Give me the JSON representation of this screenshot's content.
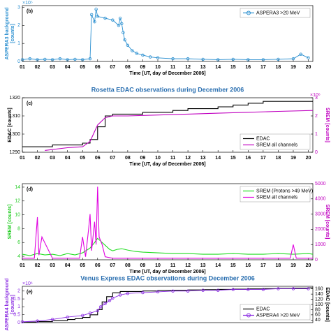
{
  "chart_data": [
    {
      "type": "line",
      "panel_label": "(b)",
      "ylabel": "ASPERA3 background\n[counts]",
      "ylabel_color": "#2a8fd0",
      "y_multiplier": "×10⁵",
      "xlabel": "Time [UT, day of December 2006]",
      "legend": "upper right",
      "xlim": [
        1,
        20.3
      ],
      "ylim": [
        0,
        3.1
      ],
      "yticks": [
        0,
        1,
        2,
        3
      ],
      "xticks": [
        {
          "value": 1,
          "label": "01"
        },
        {
          "value": 2,
          "label": "02"
        },
        {
          "value": 3,
          "label": "03"
        },
        {
          "value": 4,
          "label": "04"
        },
        {
          "value": 5,
          "label": "05"
        },
        {
          "value": 6,
          "label": "06"
        },
        {
          "value": 7,
          "label": "07"
        },
        {
          "value": 8,
          "label": "08"
        },
        {
          "value": 9,
          "label": "09"
        },
        10,
        11,
        12,
        13,
        14,
        15,
        16,
        17,
        18,
        19,
        20
      ],
      "series": [
        {
          "name": "ASPERA3 >20 MeV",
          "color": "#2a8fd0",
          "markers": true,
          "x": [
            1,
            1.5,
            2,
            2.5,
            3,
            3.5,
            4,
            4.5,
            5,
            5.5,
            5.6,
            5.8,
            5.9,
            6.0,
            6.5,
            7.0,
            7.4,
            7.5,
            7.6,
            7.7,
            7.8,
            8.0,
            8.3,
            8.6,
            9,
            9.5,
            10,
            11,
            12,
            13,
            14,
            15,
            16,
            17,
            18,
            19,
            19.5,
            20
          ],
          "values": [
            0.1,
            0.15,
            0.1,
            0.12,
            0.1,
            0.15,
            0.1,
            0.12,
            0.1,
            0.15,
            2.6,
            2.2,
            2.9,
            2.5,
            2.4,
            2.3,
            2.0,
            2.4,
            2.1,
            1.6,
            1.2,
            0.9,
            0.6,
            0.45,
            0.35,
            0.25,
            0.2,
            0.15,
            0.15,
            0.12,
            0.1,
            0.12,
            0.1,
            0.1,
            0.12,
            0.15,
            0.4,
            0.2
          ]
        }
      ]
    },
    {
      "type": "line",
      "title": "Rosetta EDAC observations during December 2006",
      "panel_label": "(c)",
      "ylabel": "EDAC [counts]",
      "ylabel_color": "#000000",
      "y2label": "SREM [counts]",
      "y2label_color": "#c000c0",
      "y2_multiplier": "×10⁶",
      "xlabel": "Time [UT, day of December 2006]",
      "legend": "lower right",
      "xlim": [
        1,
        20.3
      ],
      "ylim": [
        1290,
        1320
      ],
      "yticks": [
        1290,
        1300,
        1310,
        1320
      ],
      "y2lim": [
        0,
        3
      ],
      "y2ticks": [
        0,
        1,
        2,
        3
      ],
      "xticks": [
        {
          "value": 1,
          "label": "01"
        },
        {
          "value": 2,
          "label": "02"
        },
        {
          "value": 3,
          "label": "03"
        },
        {
          "value": 4,
          "label": "04"
        },
        {
          "value": 5,
          "label": "05"
        },
        {
          "value": 6,
          "label": "06"
        },
        {
          "value": 7,
          "label": "07"
        },
        {
          "value": 8,
          "label": "08"
        },
        {
          "value": 9,
          "label": "09"
        },
        10,
        11,
        12,
        13,
        14,
        15,
        16,
        17,
        18,
        19,
        20
      ],
      "series": [
        {
          "name": "EDAC",
          "color": "#000000",
          "step": true,
          "x": [
            1,
            2,
            3,
            4,
            5,
            5.5,
            6,
            6.5,
            7,
            8,
            9,
            10,
            11,
            12,
            13,
            14,
            15,
            16,
            17,
            18,
            19,
            20.3
          ],
          "values": [
            1293,
            1293,
            1294,
            1294,
            1295,
            1297,
            1304,
            1310,
            1311,
            1311,
            1312,
            1312,
            1313,
            1314,
            1314,
            1315,
            1316,
            1317,
            1318,
            1318,
            1318,
            1318
          ]
        },
        {
          "name": "SREM all channels",
          "color": "#c000c0",
          "axis": "y2",
          "x": [
            2.5,
            4,
            5,
            5.5,
            6,
            6.5,
            7,
            8,
            10,
            12,
            14,
            16,
            18,
            20.3
          ],
          "values": [
            0.1,
            0.25,
            0.3,
            0.6,
            1.5,
            1.9,
            2.0,
            2.0,
            2.05,
            2.1,
            2.15,
            2.2,
            2.25,
            2.3
          ]
        }
      ]
    },
    {
      "type": "line",
      "panel_label": "(d)",
      "ylabel": "SREM [counts]",
      "ylabel_color": "#22cc22",
      "y2label": "SREM [counts]",
      "y2label_color": "#c000c0",
      "xlabel": "Time [UT, day of December 2006]",
      "legend": "upper right",
      "xlim": [
        1,
        20.3
      ],
      "ylim": [
        3.5,
        14.5
      ],
      "yticks": [
        4,
        6,
        8,
        10,
        12,
        14
      ],
      "y2lim": [
        0,
        5000
      ],
      "y2ticks": [
        0,
        1000,
        2000,
        3000,
        4000,
        5000
      ],
      "xticks": [
        {
          "value": 1,
          "label": "01"
        },
        {
          "value": 2,
          "label": "02"
        },
        {
          "value": 3,
          "label": "03"
        },
        {
          "value": 4,
          "label": "04"
        },
        {
          "value": 5,
          "label": "05"
        },
        {
          "value": 6,
          "label": "06"
        },
        {
          "value": 7,
          "label": "07"
        },
        {
          "value": 8,
          "label": "08"
        },
        {
          "value": 9,
          "label": "09"
        },
        10,
        11,
        12,
        13,
        14,
        15,
        16,
        17,
        18,
        19,
        20
      ],
      "series": [
        {
          "name": "SREM (Protons >49 MeV)",
          "color": "#22dd22",
          "x": [
            1,
            1.5,
            2,
            2.5,
            3,
            3.5,
            4,
            4.5,
            5,
            5.5,
            5.8,
            6,
            6.2,
            6.5,
            6.8,
            7,
            7.3,
            7.6,
            8,
            8.5,
            9,
            10,
            11,
            12,
            13,
            14,
            15,
            16,
            17,
            18,
            19,
            20,
            20.3
          ],
          "values": [
            4.3,
            4.1,
            4.4,
            4.2,
            4.3,
            4.1,
            4.4,
            4.2,
            4.5,
            5.2,
            6.0,
            6.6,
            6.2,
            5.6,
            5.0,
            4.8,
            5.0,
            5.1,
            4.9,
            4.7,
            4.6,
            4.5,
            4.4,
            4.4,
            4.3,
            4.3,
            4.4,
            4.3,
            4.3,
            4.4,
            4.3,
            4.4,
            4.3
          ]
        },
        {
          "name": "SREM all channels",
          "color": "#e000e0",
          "axis": "y2",
          "x": [
            1,
            1.8,
            2,
            2.1,
            2.3,
            3,
            4,
            4.8,
            5,
            5.2,
            5.4,
            5.5,
            5.6,
            5.8,
            5.9,
            6,
            6.1,
            6.3,
            6.5,
            7,
            10,
            15,
            18.8,
            19,
            19.2,
            20,
            20.3
          ],
          "values": [
            100,
            100,
            2800,
            300,
            1500,
            100,
            100,
            100,
            1500,
            200,
            2000,
            3000,
            600,
            2500,
            1000,
            4800,
            1500,
            1000,
            200,
            100,
            100,
            100,
            100,
            1000,
            100,
            100,
            100
          ]
        }
      ]
    },
    {
      "type": "line",
      "title": "Venus Express EDAC observations during December 2006",
      "panel_label": "(e)",
      "ylabel": "ASPERA4 background\n[counts]",
      "ylabel_color": "#8a2be2",
      "y_multiplier": "×10⁶",
      "y2label": "EDAC [counts]",
      "y2label_color": "#000000",
      "legend": "lower right",
      "xlim": [
        1,
        20.3
      ],
      "ylim": [
        0,
        2.3
      ],
      "yticks": [
        0,
        0.5,
        1,
        1.5,
        2
      ],
      "y2lim": [
        30,
        170
      ],
      "y2ticks": [
        40,
        60,
        80,
        100,
        120,
        140,
        160
      ],
      "series": [
        {
          "name": "EDAC",
          "color": "#000000",
          "axis": "y2",
          "step": true,
          "x": [
            1,
            2,
            3,
            4,
            4.5,
            5,
            5.5,
            6,
            6.3,
            6.6,
            7,
            7.5,
            8,
            9,
            10,
            11,
            12,
            13,
            14,
            15,
            16,
            17,
            18,
            19,
            20,
            20.3
          ],
          "values": [
            32,
            34,
            38,
            42,
            45,
            50,
            60,
            80,
            110,
            130,
            145,
            150,
            150,
            152,
            154,
            155,
            156,
            157,
            158,
            159,
            160,
            161,
            162,
            163,
            164,
            164
          ]
        },
        {
          "name": "ASPERA4 >20 MeV",
          "color": "#8a2be2",
          "markers": true,
          "x": [
            1,
            2,
            3,
            4,
            5,
            5.5,
            6,
            6.2,
            6.5,
            6.8,
            7,
            7.5,
            8,
            9,
            10,
            11,
            12,
            13,
            14,
            15,
            16,
            17,
            18,
            19,
            20
          ],
          "values": [
            0.05,
            0.1,
            0.2,
            0.35,
            0.45,
            0.6,
            0.75,
            1.0,
            1.2,
            1.4,
            1.55,
            1.75,
            1.85,
            1.9,
            1.95,
            2.0,
            2.0,
            2.05,
            2.05,
            2.1,
            2.1,
            2.1,
            2.15,
            2.15,
            2.15
          ]
        }
      ]
    }
  ]
}
